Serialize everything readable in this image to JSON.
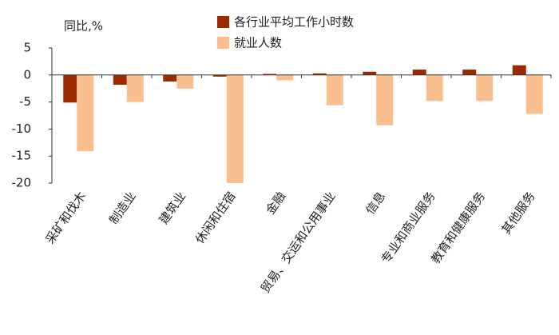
{
  "chart_data": {
    "type": "bar",
    "y_label": "同比,%",
    "categories": [
      "采矿和伐木",
      "制造业",
      "建筑业",
      "休闲和住宿",
      "金融",
      "贸易、交运和公用事业",
      "信息",
      "专业和商业服务",
      "教育和健康服务",
      "其他服务"
    ],
    "series": [
      {
        "name": "各行业平均工作小时数",
        "color": "#9c2a00",
        "values": [
          -5.1,
          -1.8,
          -1.2,
          -0.3,
          0.2,
          0.3,
          0.6,
          1.0,
          1.0,
          1.8
        ]
      },
      {
        "name": "就业人数",
        "color": "#f9bf8f",
        "values": [
          -14.1,
          -5.0,
          -2.5,
          -20.0,
          -1.0,
          -5.6,
          -9.3,
          -4.8,
          -4.8,
          -7.2
        ]
      }
    ],
    "ylim": [
      -20,
      5
    ],
    "yticks": [
      5,
      0,
      -5,
      -10,
      -15,
      -20
    ]
  }
}
